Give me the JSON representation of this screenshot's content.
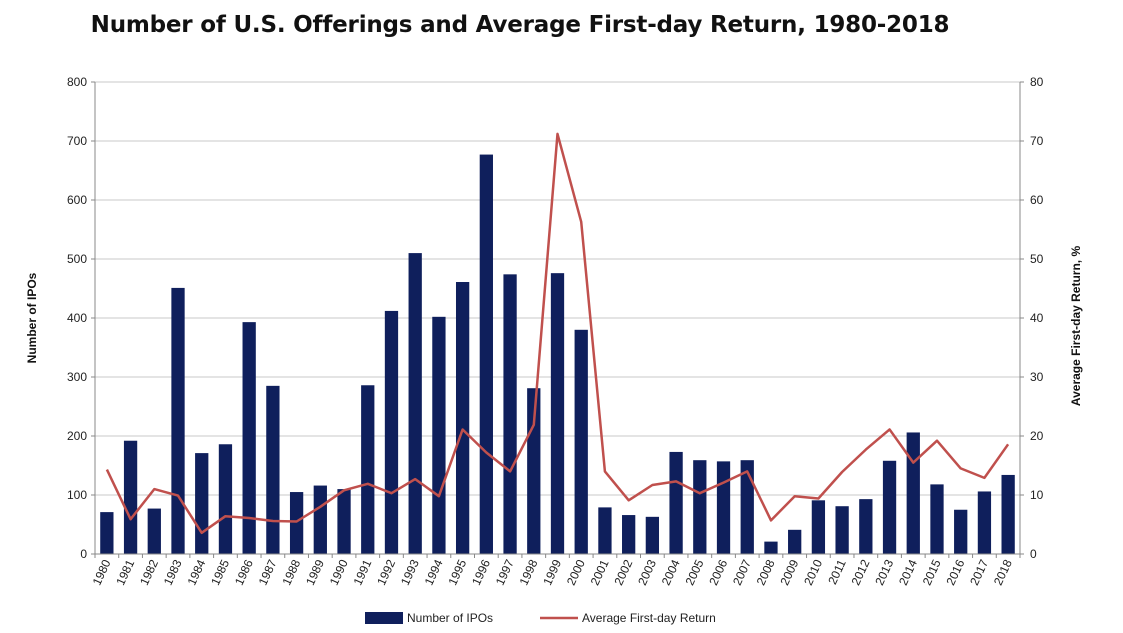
{
  "chart_data": {
    "type": "bar",
    "title": "Number of U.S. Offerings and Average First-day Return, 1980-2018",
    "ylabel": "Number of IPOs",
    "y2label": "Average First-day Return, %",
    "ylim": [
      0,
      800
    ],
    "y2lim": [
      0,
      80
    ],
    "yticks": [
      0,
      100,
      200,
      300,
      400,
      500,
      600,
      700,
      800
    ],
    "y2ticks": [
      0,
      10,
      20,
      30,
      40,
      50,
      60,
      70,
      80
    ],
    "grid": true,
    "legend_position": "bottom",
    "categories": [
      "1980",
      "1981",
      "1982",
      "1983",
      "1984",
      "1985",
      "1986",
      "1987",
      "1988",
      "1989",
      "1990",
      "1991",
      "1992",
      "1993",
      "1994",
      "1995",
      "1996",
      "1997",
      "1998",
      "1999",
      "2000",
      "2001",
      "2002",
      "2003",
      "2004",
      "2005",
      "2006",
      "2007",
      "2008",
      "2009",
      "2010",
      "2011",
      "2012",
      "2013",
      "2014",
      "2015",
      "2016",
      "2017",
      "2018"
    ],
    "series": [
      {
        "name": "Number of IPOs",
        "type": "bar",
        "axis": "left",
        "color": "#0f1f5c",
        "values": [
          71,
          192,
          77,
          451,
          171,
          186,
          393,
          285,
          105,
          116,
          110,
          286,
          412,
          510,
          402,
          461,
          677,
          474,
          281,
          476,
          380,
          79,
          66,
          63,
          173,
          159,
          157,
          159,
          21,
          41,
          91,
          81,
          93,
          158,
          206,
          118,
          75,
          106,
          134
        ]
      },
      {
        "name": "Average First-day Return",
        "type": "line",
        "axis": "right",
        "color": "#c0504d",
        "values": [
          14.3,
          5.9,
          11.0,
          9.9,
          3.6,
          6.4,
          6.1,
          5.6,
          5.5,
          8.0,
          10.8,
          11.9,
          10.3,
          12.7,
          9.8,
          21.1,
          17.2,
          14.0,
          21.9,
          71.2,
          56.3,
          14.0,
          9.1,
          11.7,
          12.3,
          10.3,
          12.1,
          14.0,
          5.7,
          9.8,
          9.4,
          13.9,
          17.7,
          21.1,
          15.5,
          19.2,
          14.5,
          12.9,
          18.6
        ]
      }
    ]
  }
}
